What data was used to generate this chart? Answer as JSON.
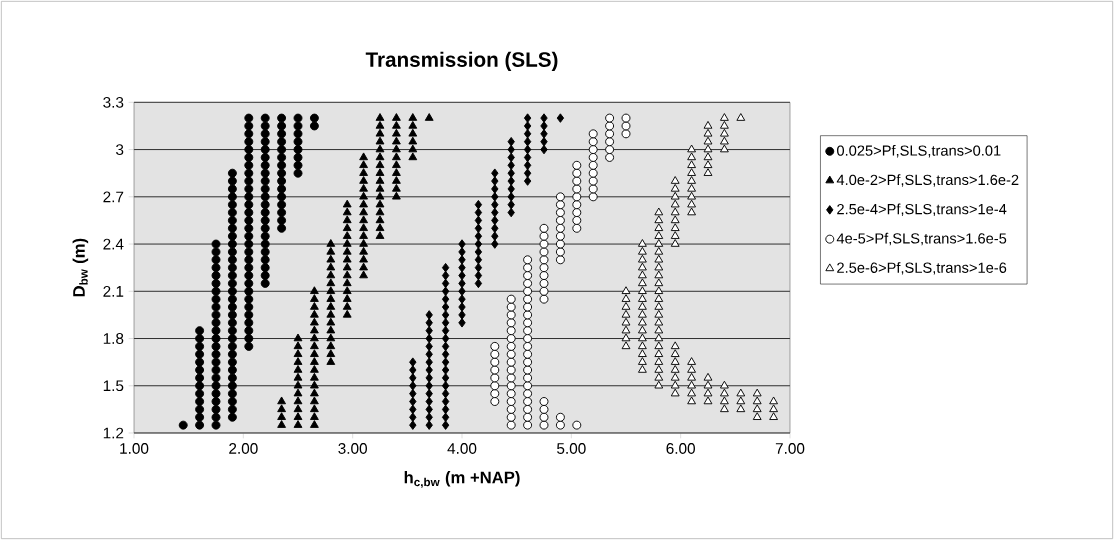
{
  "chart_data": {
    "type": "scatter",
    "title": "Transmission (SLS)",
    "xlabel": "h$_{c,bw}$ (m +NAP)",
    "ylabel": "D$_{bw}$ (m)",
    "xlim": [
      1,
      7
    ],
    "xticks": [
      {
        "value": 1,
        "label": "1.00"
      },
      {
        "value": 2,
        "label": "2.00"
      },
      {
        "value": 3,
        "label": "3.00"
      },
      {
        "value": 4,
        "label": "4.00"
      },
      {
        "value": 5,
        "label": "5.00"
      },
      {
        "value": 6,
        "label": "6.00"
      },
      {
        "value": 7,
        "label": "7.00"
      }
    ],
    "ylim": [
      1.2,
      3.3
    ],
    "yticks": [
      1.2,
      1.5,
      1.8,
      2.1,
      2.4,
      2.7,
      3,
      3.3
    ],
    "grid": "y",
    "legend": "right",
    "series": [
      {
        "name": "0.025>Pf,SLS,trans>0.01",
        "marker": "circle",
        "color": "#000000",
        "x": [
          1.45,
          1.6,
          1.6,
          1.6,
          1.6,
          1.6,
          1.6,
          1.6,
          1.6,
          1.6,
          1.6,
          1.6,
          1.6,
          1.6,
          1.75,
          1.75,
          1.75,
          1.75,
          1.75,
          1.75,
          1.75,
          1.75,
          1.75,
          1.75,
          1.75,
          1.75,
          1.75,
          1.75,
          1.75,
          1.75,
          1.75,
          1.75,
          1.75,
          1.75,
          1.75,
          1.75,
          1.75,
          1.75,
          1.9,
          1.9,
          1.9,
          1.9,
          1.9,
          1.9,
          1.9,
          1.9,
          1.9,
          1.9,
          1.9,
          1.9,
          1.9,
          1.9,
          1.9,
          1.9,
          1.9,
          1.9,
          1.9,
          1.9,
          1.9,
          1.9,
          1.9,
          1.9,
          1.9,
          1.9,
          1.9,
          1.9,
          1.9,
          1.9,
          1.9,
          1.9,
          2.05,
          2.05,
          2.05,
          2.05,
          2.05,
          2.05,
          2.05,
          2.05,
          2.05,
          2.05,
          2.05,
          2.05,
          2.05,
          2.05,
          2.05,
          2.05,
          2.05,
          2.05,
          2.05,
          2.05,
          2.05,
          2.05,
          2.05,
          2.05,
          2.05,
          2.05,
          2.05,
          2.05,
          2.05,
          2.05,
          2.2,
          2.2,
          2.2,
          2.2,
          2.2,
          2.2,
          2.2,
          2.2,
          2.2,
          2.2,
          2.2,
          2.2,
          2.2,
          2.2,
          2.2,
          2.2,
          2.2,
          2.2,
          2.2,
          2.2,
          2.2,
          2.2,
          2.35,
          2.35,
          2.35,
          2.35,
          2.35,
          2.35,
          2.35,
          2.35,
          2.35,
          2.35,
          2.35,
          2.35,
          2.35,
          2.35,
          2.35,
          2.5,
          2.5,
          2.5,
          2.5,
          2.5,
          2.5,
          2.5,
          2.5,
          2.65,
          2.65
        ],
        "values": [
          1.25,
          1.25,
          1.3,
          1.35,
          1.4,
          1.45,
          1.5,
          1.55,
          1.6,
          1.65,
          1.7,
          1.75,
          1.8,
          1.85,
          1.25,
          1.3,
          1.35,
          1.4,
          1.45,
          1.5,
          1.55,
          1.6,
          1.65,
          1.7,
          1.75,
          1.8,
          1.85,
          1.9,
          1.95,
          2,
          2.05,
          2.1,
          2.15,
          2.2,
          2.25,
          2.3,
          2.35,
          2.4,
          1.3,
          1.35,
          1.4,
          1.45,
          1.5,
          1.55,
          1.6,
          1.65,
          1.7,
          1.75,
          1.8,
          1.85,
          1.9,
          1.95,
          2,
          2.05,
          2.1,
          2.15,
          2.2,
          2.25,
          2.3,
          2.35,
          2.4,
          2.45,
          2.5,
          2.55,
          2.6,
          2.65,
          2.7,
          2.75,
          2.8,
          2.85,
          1.75,
          1.8,
          1.85,
          1.9,
          1.95,
          2,
          2.05,
          2.1,
          2.15,
          2.2,
          2.25,
          2.3,
          2.35,
          2.4,
          2.45,
          2.5,
          2.55,
          2.6,
          2.65,
          2.7,
          2.75,
          2.8,
          2.85,
          2.9,
          2.95,
          3,
          3.05,
          3.1,
          3.15,
          3.2,
          2.15,
          2.2,
          2.25,
          2.3,
          2.35,
          2.4,
          2.45,
          2.5,
          2.55,
          2.6,
          2.65,
          2.7,
          2.75,
          2.8,
          2.85,
          2.9,
          2.95,
          3,
          3.05,
          3.1,
          3.15,
          3.2,
          2.5,
          2.55,
          2.6,
          2.65,
          2.7,
          2.75,
          2.8,
          2.85,
          2.9,
          2.95,
          3,
          3.05,
          3.1,
          3.15,
          3.2,
          2.85,
          2.9,
          2.95,
          3,
          3.05,
          3.1,
          3.15,
          3.2,
          3.15,
          3.2
        ]
      },
      {
        "name": "4.0e-2>Pf,SLS,trans>1.6e-2",
        "marker": "triangle",
        "color": "#000000",
        "x": [
          2.35,
          2.35,
          2.35,
          2.35,
          2.5,
          2.5,
          2.5,
          2.5,
          2.5,
          2.5,
          2.5,
          2.5,
          2.5,
          2.5,
          2.5,
          2.5,
          2.65,
          2.65,
          2.65,
          2.65,
          2.65,
          2.65,
          2.65,
          2.65,
          2.65,
          2.65,
          2.65,
          2.65,
          2.65,
          2.65,
          2.65,
          2.65,
          2.65,
          2.65,
          2.8,
          2.8,
          2.8,
          2.8,
          2.8,
          2.8,
          2.8,
          2.8,
          2.8,
          2.8,
          2.8,
          2.8,
          2.8,
          2.8,
          2.8,
          2.8,
          2.95,
          2.95,
          2.95,
          2.95,
          2.95,
          2.95,
          2.95,
          2.95,
          2.95,
          2.95,
          2.95,
          2.95,
          2.95,
          2.95,
          2.95,
          3.1,
          3.1,
          3.1,
          3.1,
          3.1,
          3.1,
          3.1,
          3.1,
          3.1,
          3.1,
          3.1,
          3.1,
          3.1,
          3.1,
          3.1,
          3.1,
          3.25,
          3.25,
          3.25,
          3.25,
          3.25,
          3.25,
          3.25,
          3.25,
          3.25,
          3.25,
          3.25,
          3.25,
          3.25,
          3.25,
          3.25,
          3.25,
          3.4,
          3.4,
          3.4,
          3.4,
          3.4,
          3.4,
          3.4,
          3.4,
          3.4,
          3.4,
          3.4,
          3.55,
          3.55,
          3.55,
          3.55,
          3.55,
          3.55,
          3.7
        ],
        "values": [
          1.25,
          1.3,
          1.35,
          1.4,
          1.25,
          1.3,
          1.35,
          1.4,
          1.45,
          1.5,
          1.55,
          1.6,
          1.65,
          1.7,
          1.75,
          1.8,
          1.25,
          1.3,
          1.35,
          1.4,
          1.45,
          1.5,
          1.55,
          1.6,
          1.65,
          1.7,
          1.75,
          1.8,
          1.85,
          1.9,
          1.95,
          2,
          2.05,
          2.1,
          1.65,
          1.7,
          1.75,
          1.8,
          1.85,
          1.9,
          1.95,
          2,
          2.05,
          2.1,
          2.15,
          2.2,
          2.25,
          2.3,
          2.35,
          2.4,
          1.95,
          2,
          2.05,
          2.1,
          2.15,
          2.2,
          2.25,
          2.3,
          2.35,
          2.4,
          2.45,
          2.5,
          2.55,
          2.6,
          2.65,
          2.2,
          2.25,
          2.3,
          2.35,
          2.4,
          2.45,
          2.5,
          2.55,
          2.6,
          2.65,
          2.7,
          2.75,
          2.8,
          2.85,
          2.9,
          2.95,
          2.45,
          2.5,
          2.55,
          2.6,
          2.65,
          2.7,
          2.75,
          2.8,
          2.85,
          2.9,
          2.95,
          3,
          3.05,
          3.1,
          3.15,
          3.2,
          2.7,
          2.75,
          2.8,
          2.85,
          2.9,
          2.95,
          3,
          3.05,
          3.1,
          3.15,
          3.2,
          2.95,
          3,
          3.05,
          3.1,
          3.15,
          3.2,
          3.2
        ]
      },
      {
        "name": "2.5e-4>Pf,SLS,trans>1e-4",
        "marker": "diamond",
        "color": "#000000",
        "x": [
          3.55,
          3.55,
          3.55,
          3.55,
          3.55,
          3.55,
          3.55,
          3.55,
          3.55,
          3.7,
          3.7,
          3.7,
          3.7,
          3.7,
          3.7,
          3.7,
          3.7,
          3.7,
          3.7,
          3.7,
          3.7,
          3.7,
          3.7,
          3.7,
          3.85,
          3.85,
          3.85,
          3.85,
          3.85,
          3.85,
          3.85,
          3.85,
          3.85,
          3.85,
          3.85,
          3.85,
          3.85,
          3.85,
          3.85,
          3.85,
          3.85,
          3.85,
          3.85,
          3.85,
          3.85,
          4,
          4,
          4,
          4,
          4,
          4,
          4,
          4,
          4,
          4,
          4,
          4.15,
          4.15,
          4.15,
          4.15,
          4.15,
          4.15,
          4.15,
          4.15,
          4.15,
          4.15,
          4.15,
          4.3,
          4.3,
          4.3,
          4.3,
          4.3,
          4.3,
          4.3,
          4.3,
          4.3,
          4.3,
          4.45,
          4.45,
          4.45,
          4.45,
          4.45,
          4.45,
          4.45,
          4.45,
          4.45,
          4.45,
          4.6,
          4.6,
          4.6,
          4.6,
          4.6,
          4.6,
          4.6,
          4.6,
          4.6,
          4.75,
          4.75,
          4.75,
          4.75,
          4.75,
          4.9
        ],
        "values": [
          1.25,
          1.3,
          1.35,
          1.4,
          1.45,
          1.5,
          1.55,
          1.6,
          1.65,
          1.25,
          1.3,
          1.35,
          1.4,
          1.45,
          1.5,
          1.55,
          1.6,
          1.65,
          1.7,
          1.75,
          1.8,
          1.85,
          1.9,
          1.95,
          1.25,
          1.3,
          1.35,
          1.4,
          1.45,
          1.5,
          1.55,
          1.6,
          1.65,
          1.7,
          1.75,
          1.8,
          1.85,
          1.9,
          1.95,
          2,
          2.05,
          2.1,
          2.15,
          2.2,
          2.25,
          1.9,
          1.95,
          2,
          2.05,
          2.1,
          2.15,
          2.2,
          2.25,
          2.3,
          2.35,
          2.4,
          2.15,
          2.2,
          2.25,
          2.3,
          2.35,
          2.4,
          2.45,
          2.5,
          2.55,
          2.6,
          2.65,
          2.4,
          2.45,
          2.5,
          2.55,
          2.6,
          2.65,
          2.7,
          2.75,
          2.8,
          2.85,
          2.6,
          2.65,
          2.7,
          2.75,
          2.8,
          2.85,
          2.9,
          2.95,
          3,
          3.05,
          2.8,
          2.85,
          2.9,
          2.95,
          3,
          3.05,
          3.1,
          3.15,
          3.2,
          3,
          3.05,
          3.1,
          3.15,
          3.2,
          3.2
        ]
      },
      {
        "name": "4e-5>Pf,SLS,trans>1.6e-5",
        "marker": "circle",
        "color": "#ffffff",
        "x": [
          4.3,
          4.3,
          4.3,
          4.3,
          4.3,
          4.3,
          4.3,
          4.3,
          4.45,
          4.45,
          4.45,
          4.45,
          4.45,
          4.45,
          4.45,
          4.45,
          4.45,
          4.45,
          4.45,
          4.45,
          4.45,
          4.45,
          4.45,
          4.45,
          4.45,
          4.6,
          4.6,
          4.6,
          4.6,
          4.6,
          4.6,
          4.6,
          4.6,
          4.6,
          4.6,
          4.6,
          4.6,
          4.6,
          4.6,
          4.6,
          4.6,
          4.6,
          4.6,
          4.6,
          4.6,
          4.6,
          4.6,
          4.75,
          4.75,
          4.75,
          4.75,
          4.75,
          4.75,
          4.75,
          4.75,
          4.75,
          4.75,
          4.75,
          4.75,
          4.75,
          4.75,
          4.9,
          4.9,
          4.9,
          4.9,
          4.9,
          4.9,
          4.9,
          4.9,
          4.9,
          4.9,
          4.9,
          5.05,
          5.05,
          5.05,
          5.05,
          5.05,
          5.05,
          5.05,
          5.05,
          5.05,
          5.05,
          5.2,
          5.2,
          5.2,
          5.2,
          5.2,
          5.2,
          5.2,
          5.2,
          5.2,
          5.35,
          5.35,
          5.35,
          5.35,
          5.35,
          5.35,
          5.5,
          5.5,
          5.5
        ],
        "values": [
          1.4,
          1.45,
          1.5,
          1.55,
          1.6,
          1.65,
          1.7,
          1.75,
          1.25,
          1.3,
          1.35,
          1.4,
          1.45,
          1.5,
          1.55,
          1.6,
          1.65,
          1.7,
          1.75,
          1.8,
          1.85,
          1.9,
          1.95,
          2,
          2.05,
          1.25,
          1.3,
          1.35,
          1.4,
          1.45,
          1.5,
          1.55,
          1.6,
          1.65,
          1.7,
          1.75,
          1.8,
          1.85,
          1.9,
          1.95,
          2,
          2.05,
          2.1,
          2.15,
          2.2,
          2.25,
          2.3,
          1.25,
          1.3,
          1.35,
          1.4,
          2.05,
          2.1,
          2.15,
          2.2,
          2.25,
          2.3,
          2.35,
          2.4,
          2.45,
          2.5,
          1.25,
          1.3,
          2.3,
          2.35,
          2.4,
          2.45,
          2.5,
          2.55,
          2.6,
          2.65,
          2.7,
          1.25,
          2.5,
          2.55,
          2.6,
          2.65,
          2.7,
          2.75,
          2.8,
          2.85,
          2.9,
          2.7,
          2.75,
          2.8,
          2.85,
          2.9,
          2.95,
          3,
          3.05,
          3.1,
          2.95,
          3,
          3.05,
          3.1,
          3.15,
          3.2,
          3.1,
          3.15,
          3.2
        ]
      },
      {
        "name": "2.5e-6>Pf,SLS,trans>1e-6",
        "marker": "triangle",
        "color": "#ffffff",
        "x": [
          5.5,
          5.5,
          5.5,
          5.5,
          5.5,
          5.5,
          5.5,
          5.5,
          5.65,
          5.65,
          5.65,
          5.65,
          5.65,
          5.65,
          5.65,
          5.65,
          5.65,
          5.65,
          5.65,
          5.65,
          5.65,
          5.65,
          5.65,
          5.65,
          5.65,
          5.8,
          5.8,
          5.8,
          5.8,
          5.8,
          5.8,
          5.8,
          5.8,
          5.8,
          5.8,
          5.8,
          5.8,
          5.8,
          5.8,
          5.8,
          5.8,
          5.8,
          5.8,
          5.8,
          5.8,
          5.8,
          5.8,
          5.8,
          5.95,
          5.95,
          5.95,
          5.95,
          5.95,
          5.95,
          5.95,
          5.95,
          5.95,
          5.95,
          5.95,
          5.95,
          5.95,
          5.95,
          5.95,
          5.95,
          6.1,
          6.1,
          6.1,
          6.1,
          6.1,
          6.1,
          6.1,
          6.1,
          6.1,
          6.1,
          6.1,
          6.1,
          6.1,
          6.1,
          6.1,
          6.25,
          6.25,
          6.25,
          6.25,
          6.25,
          6.25,
          6.25,
          6.25,
          6.25,
          6.25,
          6.25,
          6.4,
          6.4,
          6.4,
          6.4,
          6.4,
          6.4,
          6.4,
          6.4,
          6.4,
          6.55,
          6.55,
          6.55,
          6.55,
          6.7,
          6.7,
          6.7,
          6.7,
          6.85,
          6.85,
          6.85
        ],
        "values": [
          1.75,
          1.8,
          1.85,
          1.9,
          1.95,
          2,
          2.05,
          2.1,
          1.6,
          1.65,
          1.7,
          1.75,
          1.8,
          1.85,
          1.9,
          1.95,
          2,
          2.05,
          2.1,
          2.15,
          2.2,
          2.25,
          2.3,
          2.35,
          2.4,
          1.5,
          1.55,
          1.6,
          1.65,
          1.7,
          1.75,
          1.8,
          1.85,
          1.9,
          1.95,
          2,
          2.05,
          2.1,
          2.15,
          2.2,
          2.25,
          2.3,
          2.35,
          2.4,
          2.45,
          2.5,
          2.55,
          2.6,
          1.45,
          1.5,
          1.55,
          1.6,
          1.65,
          1.7,
          1.75,
          2.4,
          2.45,
          2.5,
          2.55,
          2.6,
          2.65,
          2.7,
          2.75,
          2.8,
          1.4,
          1.45,
          1.5,
          1.55,
          1.6,
          1.65,
          2.6,
          2.65,
          2.7,
          2.75,
          2.8,
          2.85,
          2.9,
          2.95,
          3,
          1.4,
          1.45,
          1.5,
          1.55,
          2.85,
          2.9,
          2.95,
          3,
          3.05,
          3.1,
          3.15,
          1.35,
          1.4,
          1.45,
          1.5,
          3,
          3.05,
          3.1,
          3.15,
          3.2,
          1.35,
          1.4,
          1.45,
          3.2,
          1.3,
          1.35,
          1.4,
          1.45,
          1.3,
          1.35,
          1.4
        ]
      }
    ]
  }
}
